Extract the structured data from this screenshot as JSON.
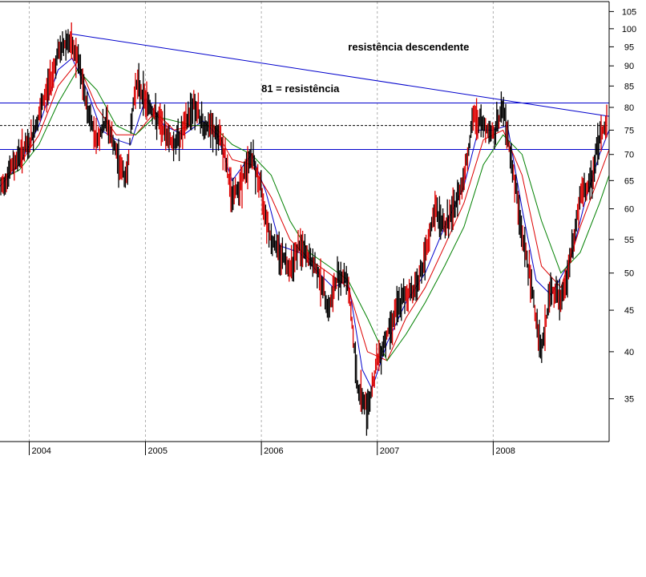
{
  "chart_data": {
    "type": "line",
    "title": "",
    "xlabel": "",
    "ylabel": "",
    "y_scale": "log",
    "ylim": [
      31,
      108
    ],
    "xlim": [
      "2003-10-01",
      "2008-12-31"
    ],
    "grid": {
      "vertical_dashed_at_year_starts": true,
      "horizontal": false
    },
    "y_ticks": [
      35,
      40,
      45,
      50,
      55,
      60,
      65,
      70,
      75,
      80,
      85,
      90,
      95,
      100,
      105
    ],
    "x_ticks": [
      {
        "label": "2004",
        "date": "2004-01-01"
      },
      {
        "label": "2005",
        "date": "2005-01-01"
      },
      {
        "label": "2006",
        "date": "2006-01-01"
      },
      {
        "label": "2007",
        "date": "2007-01-01"
      },
      {
        "label": "2008",
        "date": "2008-01-01"
      }
    ],
    "series": [
      {
        "key": "price",
        "color": "#000000",
        "points": [
          [
            "2003-10-01",
            63
          ],
          [
            "2003-11-01",
            67
          ],
          [
            "2003-12-01",
            70
          ],
          [
            "2004-01-01",
            72
          ],
          [
            "2004-02-01",
            78
          ],
          [
            "2004-03-01",
            85
          ],
          [
            "2004-04-01",
            93
          ],
          [
            "2004-05-01",
            97
          ],
          [
            "2004-06-01",
            92
          ],
          [
            "2004-07-01",
            80
          ],
          [
            "2004-08-01",
            73
          ],
          [
            "2004-09-01",
            77
          ],
          [
            "2004-10-01",
            70
          ],
          [
            "2004-11-01",
            65
          ],
          [
            "2004-12-01",
            86
          ],
          [
            "2005-01-01",
            82
          ],
          [
            "2005-02-01",
            78
          ],
          [
            "2005-03-01",
            75
          ],
          [
            "2005-04-01",
            72
          ],
          [
            "2005-05-01",
            75
          ],
          [
            "2005-06-01",
            81
          ],
          [
            "2005-07-01",
            76
          ],
          [
            "2005-08-01",
            75
          ],
          [
            "2005-09-01",
            72
          ],
          [
            "2005-10-01",
            62
          ],
          [
            "2005-11-01",
            65
          ],
          [
            "2005-12-01",
            70
          ],
          [
            "2006-01-01",
            63
          ],
          [
            "2006-02-01",
            55
          ],
          [
            "2006-03-01",
            53
          ],
          [
            "2006-04-01",
            51
          ],
          [
            "2006-05-01",
            54
          ],
          [
            "2006-06-01",
            52
          ],
          [
            "2006-07-01",
            50
          ],
          [
            "2006-08-01",
            45
          ],
          [
            "2006-09-01",
            50
          ],
          [
            "2006-10-01",
            49
          ],
          [
            "2006-11-01",
            36
          ],
          [
            "2006-12-01",
            34
          ],
          [
            "2007-01-01",
            39
          ],
          [
            "2007-02-01",
            42
          ],
          [
            "2007-03-01",
            45
          ],
          [
            "2007-04-01",
            47
          ],
          [
            "2007-05-01",
            48
          ],
          [
            "2007-06-01",
            52
          ],
          [
            "2007-07-01",
            60
          ],
          [
            "2007-08-01",
            57
          ],
          [
            "2007-09-01",
            60
          ],
          [
            "2007-10-01",
            66
          ],
          [
            "2007-11-01",
            78
          ],
          [
            "2007-12-01",
            76
          ],
          [
            "2008-01-01",
            74
          ],
          [
            "2008-02-01",
            80
          ],
          [
            "2008-03-01",
            68
          ],
          [
            "2008-04-01",
            56
          ],
          [
            "2008-05-01",
            48
          ],
          [
            "2008-06-01",
            40
          ],
          [
            "2008-07-01",
            48
          ],
          [
            "2008-08-01",
            46
          ],
          [
            "2008-09-01",
            52
          ],
          [
            "2008-10-01",
            62
          ],
          [
            "2008-11-01",
            64
          ],
          [
            "2008-12-01",
            74
          ],
          [
            "2008-12-31",
            77
          ]
        ]
      },
      {
        "key": "ma-short",
        "color": "#0000cc",
        "points": [
          [
            "2003-10-01",
            64
          ],
          [
            "2003-12-01",
            68
          ],
          [
            "2004-02-01",
            76
          ],
          [
            "2004-04-01",
            89
          ],
          [
            "2004-05-15",
            92
          ],
          [
            "2004-07-01",
            84
          ],
          [
            "2004-08-15",
            75
          ],
          [
            "2004-10-01",
            73
          ],
          [
            "2004-11-15",
            72
          ],
          [
            "2005-01-01",
            82
          ],
          [
            "2005-03-01",
            76
          ],
          [
            "2005-05-01",
            74
          ],
          [
            "2005-07-01",
            77
          ],
          [
            "2005-08-15",
            74
          ],
          [
            "2005-10-01",
            65
          ],
          [
            "2005-12-01",
            70
          ],
          [
            "2006-01-15",
            63
          ],
          [
            "2006-03-01",
            54
          ],
          [
            "2006-05-01",
            53
          ],
          [
            "2006-07-01",
            50
          ],
          [
            "2006-08-15",
            48
          ],
          [
            "2006-10-01",
            49
          ],
          [
            "2006-11-15",
            38
          ],
          [
            "2006-12-15",
            36
          ],
          [
            "2007-02-01",
            41
          ],
          [
            "2007-04-01",
            46
          ],
          [
            "2007-06-01",
            50
          ],
          [
            "2007-08-01",
            57
          ],
          [
            "2007-10-01",
            64
          ],
          [
            "2007-11-15",
            75
          ],
          [
            "2008-01-01",
            75
          ],
          [
            "2008-02-15",
            76
          ],
          [
            "2008-04-01",
            60
          ],
          [
            "2008-05-15",
            49
          ],
          [
            "2008-07-01",
            47
          ],
          [
            "2008-09-01",
            52
          ],
          [
            "2008-10-15",
            61
          ],
          [
            "2008-12-01",
            70
          ],
          [
            "2008-12-31",
            75
          ]
        ]
      },
      {
        "key": "ma-mid",
        "color": "#dd0000",
        "points": [
          [
            "2003-10-01",
            65
          ],
          [
            "2003-12-01",
            68
          ],
          [
            "2004-02-01",
            74
          ],
          [
            "2004-04-01",
            85
          ],
          [
            "2004-06-01",
            91
          ],
          [
            "2004-08-01",
            80
          ],
          [
            "2004-10-01",
            74
          ],
          [
            "2004-12-01",
            74
          ],
          [
            "2005-02-01",
            79
          ],
          [
            "2005-04-01",
            75
          ],
          [
            "2005-06-01",
            76
          ],
          [
            "2005-08-01",
            76
          ],
          [
            "2005-10-01",
            69
          ],
          [
            "2005-12-01",
            68
          ],
          [
            "2006-02-01",
            62
          ],
          [
            "2006-04-01",
            55
          ],
          [
            "2006-06-01",
            52
          ],
          [
            "2006-08-01",
            50
          ],
          [
            "2006-10-01",
            48
          ],
          [
            "2006-12-01",
            40
          ],
          [
            "2007-02-01",
            39
          ],
          [
            "2007-04-01",
            44
          ],
          [
            "2007-06-01",
            48
          ],
          [
            "2007-08-01",
            54
          ],
          [
            "2007-10-01",
            61
          ],
          [
            "2007-12-01",
            73
          ],
          [
            "2008-02-01",
            75
          ],
          [
            "2008-04-01",
            66
          ],
          [
            "2008-06-01",
            51
          ],
          [
            "2008-08-01",
            48
          ],
          [
            "2008-10-01",
            57
          ],
          [
            "2008-12-01",
            66
          ],
          [
            "2008-12-31",
            71
          ]
        ]
      },
      {
        "key": "ma-long",
        "color": "#008000",
        "points": [
          [
            "2003-10-01",
            65
          ],
          [
            "2003-12-01",
            67
          ],
          [
            "2004-02-01",
            72
          ],
          [
            "2004-04-01",
            81
          ],
          [
            "2004-06-01",
            89
          ],
          [
            "2004-08-01",
            84
          ],
          [
            "2004-10-01",
            76
          ],
          [
            "2004-12-01",
            74
          ],
          [
            "2005-02-01",
            78
          ],
          [
            "2005-04-01",
            77
          ],
          [
            "2005-06-01",
            76
          ],
          [
            "2005-08-01",
            76
          ],
          [
            "2005-10-01",
            72
          ],
          [
            "2005-12-01",
            70
          ],
          [
            "2006-02-01",
            66
          ],
          [
            "2006-04-01",
            58
          ],
          [
            "2006-06-01",
            53
          ],
          [
            "2006-08-01",
            51
          ],
          [
            "2006-10-01",
            49
          ],
          [
            "2006-12-01",
            44
          ],
          [
            "2007-02-01",
            39
          ],
          [
            "2007-04-01",
            42
          ],
          [
            "2007-06-01",
            46
          ],
          [
            "2007-08-01",
            51
          ],
          [
            "2007-10-01",
            57
          ],
          [
            "2007-12-01",
            68
          ],
          [
            "2008-02-01",
            74
          ],
          [
            "2008-04-01",
            70
          ],
          [
            "2008-06-01",
            58
          ],
          [
            "2008-08-01",
            50
          ],
          [
            "2008-10-01",
            53
          ],
          [
            "2008-12-01",
            61
          ],
          [
            "2008-12-31",
            66
          ]
        ]
      }
    ],
    "reference_lines": [
      {
        "key": "resistance-81",
        "type": "horizontal",
        "y": 81,
        "color": "#0000cc",
        "dashed": false
      },
      {
        "key": "support-71",
        "type": "horizontal",
        "y": 71,
        "color": "#0000cc",
        "dashed": false
      },
      {
        "key": "dotted-76",
        "type": "horizontal",
        "y": 76,
        "color": "#000000",
        "dashed": true
      },
      {
        "key": "descending-resistance",
        "type": "trend",
        "from": [
          "2004-05-15",
          98.5
        ],
        "to": [
          "2008-12-31",
          78
        ],
        "color": "#0000cc",
        "dashed": false
      }
    ],
    "annotations": [
      {
        "key": "annot-descending",
        "text": "resistência descendente",
        "at": [
          "2006-10-01",
          94
        ]
      },
      {
        "key": "annot-81",
        "text": "81 = resistência",
        "at": [
          "2006-01-01",
          83.5
        ]
      }
    ]
  }
}
